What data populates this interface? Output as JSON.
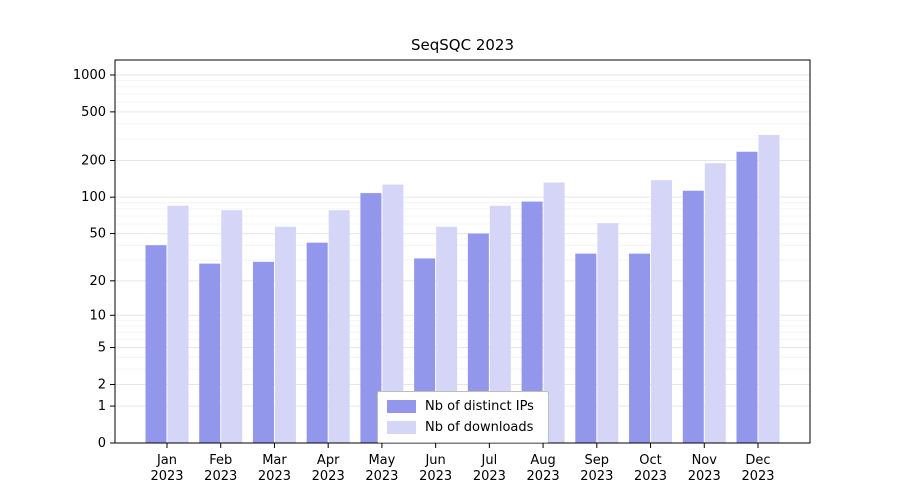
{
  "chart_data": {
    "type": "bar",
    "title": "SeqSQC 2023",
    "year_label": "2023",
    "categories": [
      "Jan",
      "Feb",
      "Mar",
      "Apr",
      "May",
      "Jun",
      "Jul",
      "Aug",
      "Sep",
      "Oct",
      "Nov",
      "Dec"
    ],
    "series": [
      {
        "name": "Nb of distinct IPs",
        "color": "#9297ec",
        "values": [
          40,
          28,
          29,
          42,
          108,
          31,
          50,
          92,
          34,
          34,
          113,
          236
        ]
      },
      {
        "name": "Nb of downloads",
        "color": "#d5d6f7",
        "values": [
          85,
          78,
          57,
          78,
          127,
          57,
          85,
          132,
          61,
          138,
          190,
          324
        ]
      }
    ],
    "yticks": [
      0,
      1,
      2,
      5,
      10,
      20,
      50,
      100,
      200,
      500,
      1000
    ],
    "ylim": [
      0,
      1000
    ],
    "yscale": "log1p",
    "grid": true,
    "legend_position": "bottom-center",
    "colors": {
      "grid_major": "#e6e6e6",
      "grid_minor": "#f4f4f4",
      "axis": "#000000",
      "background": "#ffffff"
    }
  }
}
